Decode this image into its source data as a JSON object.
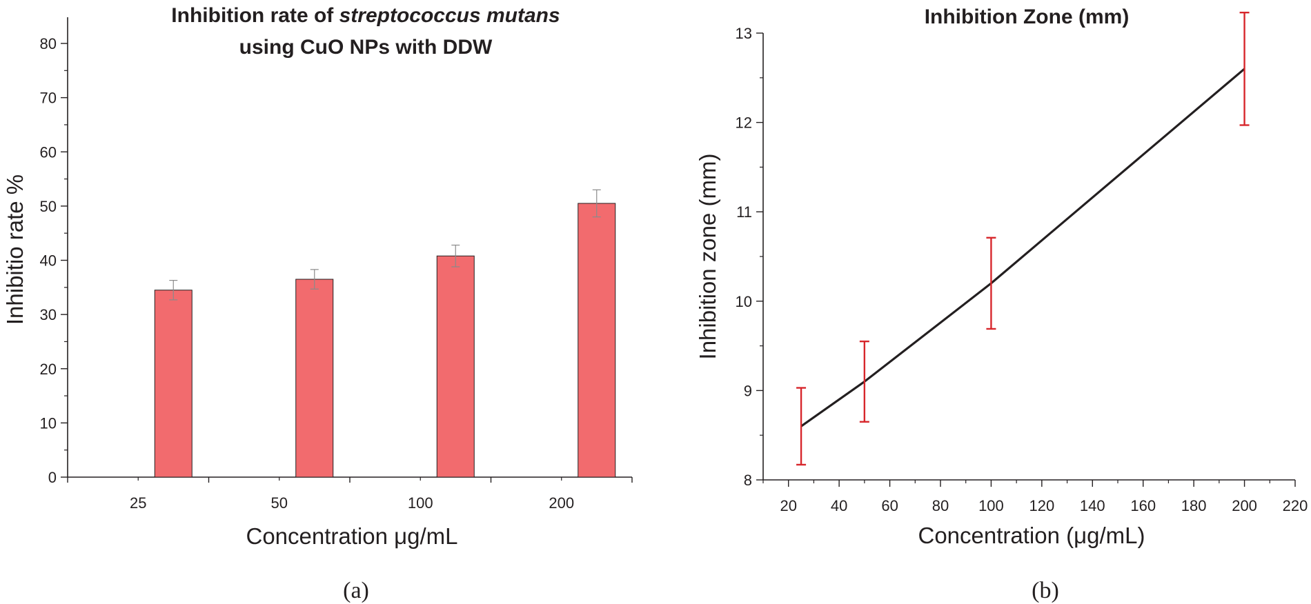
{
  "chart_data": [
    {
      "type": "bar",
      "panel_label": "(a)",
      "title_line1_plain": "Inhibition rate of ",
      "title_line1_italic": "streptococcus mutans",
      "title_line2": "using CuO NPs with DDW",
      "xlabel": "Concentration μg/mL",
      "ylabel": "Inhibitio rate %",
      "ylim": [
        0,
        85
      ],
      "yticks": [
        0,
        10,
        20,
        30,
        40,
        50,
        60,
        70,
        80
      ],
      "categories": [
        "25",
        "50",
        "100",
        "200"
      ],
      "values": [
        34.5,
        36.5,
        40.8,
        50.5
      ],
      "errors": [
        1.8,
        1.8,
        2.0,
        2.5
      ],
      "bar_color": "#f26b6e",
      "error_color": "#8a8a8a"
    },
    {
      "type": "line",
      "panel_label": "(b)",
      "title": "Inhibition Zone (mm)",
      "xlabel": "Concentration (μg/mL)",
      "ylabel": "Inhibition zone (mm)",
      "xlim": [
        10,
        220
      ],
      "ylim": [
        8,
        13
      ],
      "xticks": [
        20,
        40,
        60,
        80,
        100,
        120,
        140,
        160,
        180,
        200,
        220
      ],
      "yticks": [
        8,
        9,
        10,
        11,
        12,
        13
      ],
      "x": [
        25,
        50,
        100,
        200
      ],
      "y": [
        8.6,
        9.1,
        10.2,
        12.6
      ],
      "errors": [
        0.43,
        0.45,
        0.51,
        0.63
      ],
      "line_color": "#231f20",
      "error_color": "#d7262b"
    }
  ]
}
